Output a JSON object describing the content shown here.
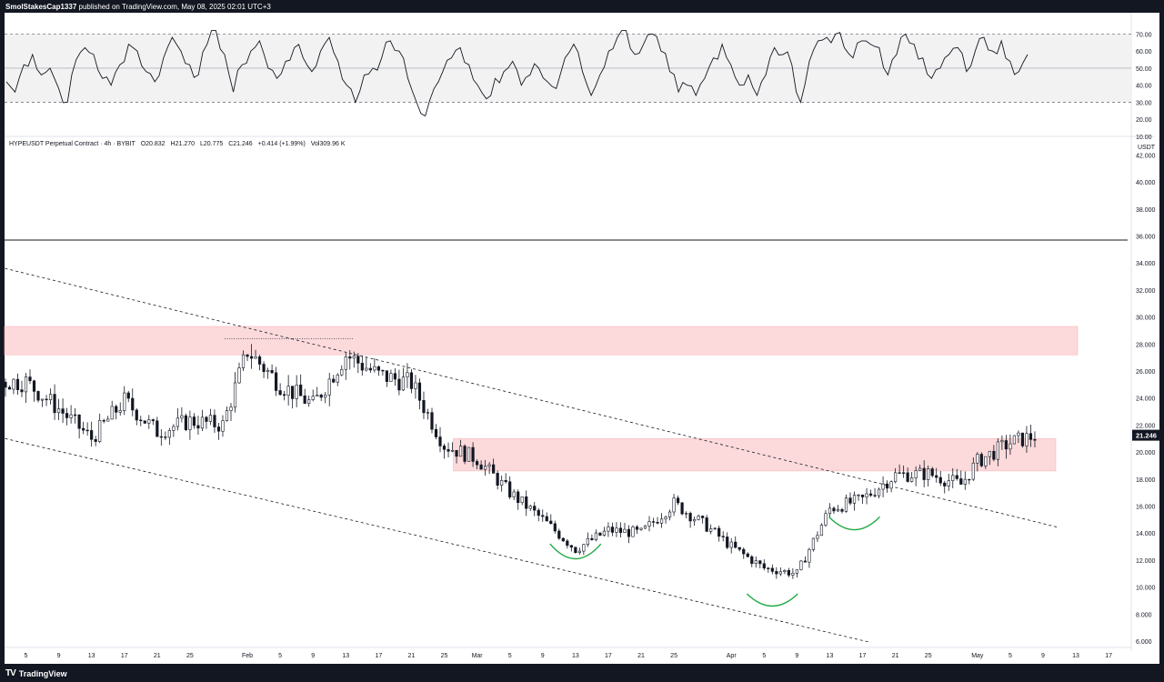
{
  "header": {
    "publisher": "SmolStakesCap1337",
    "published_text": "published on TradingView.com, May 08, 2025 02:01 UTC+3"
  },
  "footer": {
    "brand": "TradingView",
    "logo_text": "TV"
  },
  "legend": {
    "symbol": "HYPEUSDT Perpetual Contract · 4h · BYBIT",
    "open": "O20.832",
    "high": "H21.270",
    "low": "L20.775",
    "close": "C21.246",
    "change": "+0.414 (+1.99%)",
    "volume": "Vol309.96 K"
  },
  "chart_data": [
    {
      "type": "line",
      "panel": "oscillator",
      "y_ticks": [
        "70.00",
        "60.00",
        "50.00",
        "40.00",
        "30.00",
        "20.00",
        "10.00"
      ],
      "ylim": [
        10,
        75
      ],
      "band": [
        30,
        70
      ],
      "midline": 50,
      "series": [
        {
          "values": [
            42,
            36,
            52,
            58,
            46,
            50,
            38,
            30,
            55,
            62,
            58,
            44,
            40,
            52,
            64,
            60,
            48,
            42,
            56,
            68,
            60,
            52,
            46,
            64,
            72,
            58,
            36,
            52,
            60,
            66,
            50,
            44,
            54,
            62,
            56,
            48,
            60,
            68,
            54,
            40,
            30,
            46,
            50,
            56,
            66,
            60,
            44,
            30,
            22,
            38,
            48,
            56,
            62,
            52,
            40,
            32,
            44,
            48,
            54,
            40,
            46,
            50,
            42,
            38,
            56,
            64,
            48,
            34,
            46,
            60,
            68,
            72,
            58,
            64,
            70,
            60,
            48,
            36,
            40,
            34,
            44,
            56,
            64,
            52,
            40,
            46,
            34,
            46,
            62,
            58,
            52,
            30,
            54,
            66,
            68,
            70,
            62,
            56,
            66,
            64,
            62,
            46,
            58,
            70,
            64,
            56,
            44,
            50,
            58,
            62,
            48,
            60,
            68,
            60,
            66,
            54,
            48,
            58
          ]
        }
      ]
    },
    {
      "type": "candlestick",
      "panel": "price",
      "unit": "USDT",
      "price_label": "21.246",
      "y_ticks": [
        "6.000",
        "8.000",
        "10.000",
        "12.000",
        "14.000",
        "16.000",
        "18.000",
        "20.000",
        "22.000",
        "24.000",
        "26.000",
        "28.000",
        "30.000",
        "32.000",
        "34.000",
        "36.000",
        "38.000",
        "40.000",
        "42.000"
      ],
      "ylim": [
        5.5,
        42
      ],
      "x_ticks": [
        "5",
        "9",
        "13",
        "17",
        "21",
        "25",
        "Feb",
        "5",
        "9",
        "13",
        "17",
        "21",
        "25",
        "Mar",
        "5",
        "9",
        "13",
        "17",
        "21",
        "25",
        "Apr",
        "5",
        "9",
        "13",
        "17",
        "21",
        "25",
        "May",
        "5",
        "9",
        "13",
        "17"
      ],
      "x": [
        "Jan 5",
        "Jan 9",
        "Jan 13",
        "Jan 17",
        "Jan 21",
        "Jan 25",
        "Jan 29",
        "Feb 1",
        "Feb 5",
        "Feb 9",
        "Feb 13",
        "Feb 17",
        "Feb 21",
        "Feb 25",
        "Mar 1",
        "Mar 5",
        "Mar 9",
        "Mar 13",
        "Mar 17",
        "Mar 21",
        "Mar 25",
        "Mar 29",
        "Apr 1",
        "Apr 5",
        "Apr 9",
        "Apr 13",
        "Apr 17",
        "Apr 21",
        "Apr 25",
        "Apr 29",
        "May 1",
        "May 5",
        "May 8"
      ],
      "close": [
        25.2,
        23.2,
        21.0,
        23.8,
        21.5,
        22.3,
        22.0,
        27.5,
        25.0,
        23.5,
        27.2,
        25.7,
        25.1,
        20.5,
        19.5,
        17.0,
        15.0,
        12.8,
        14.2,
        14.0,
        16.2,
        14.5,
        13.0,
        11.4,
        11.0,
        15.8,
        16.5,
        18.3,
        18.4,
        17.6,
        19.3,
        20.7,
        21.2
      ],
      "horizontal_line": 35.7,
      "zones": [
        {
          "from": 27.2,
          "to": 29.3
        },
        {
          "from": 18.6,
          "to": 21.0
        }
      ],
      "trendlines": [
        {
          "style": "dashed",
          "from": {
            "x": "Jan 5",
            "y": 33.6
          },
          "to": {
            "x": "May 11",
            "y": 14.4
          }
        },
        {
          "style": "dashed",
          "from": {
            "x": "Jan 5",
            "y": 21.0
          },
          "to": {
            "x": "Apr 18",
            "y": 5.9
          }
        }
      ]
    }
  ],
  "colors": {
    "up": "#131722",
    "down": "#131722",
    "zone": "#fcdadc",
    "arc": "#22aa44",
    "band_fill": "#f2f2f2",
    "background": "#131722"
  }
}
